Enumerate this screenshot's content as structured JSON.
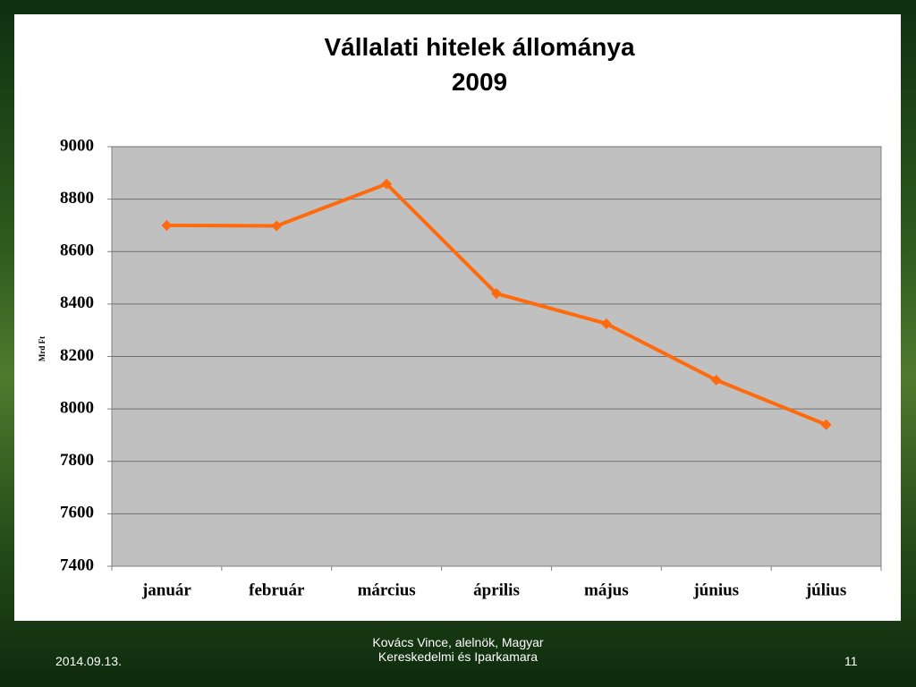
{
  "chart_data": {
    "type": "line",
    "title": "Vállalati hitelek állománya",
    "subtitle": "2009",
    "y_label": "Mrd Ft",
    "categories": [
      "január",
      "február",
      "március",
      "április",
      "május",
      "június",
      "július"
    ],
    "values": [
      8700,
      8698,
      8858,
      8440,
      8325,
      8110,
      7940
    ],
    "color": "#ff6a0d",
    "ylim": [
      7400,
      9000
    ],
    "yticks": [
      7400,
      7600,
      7800,
      8000,
      8200,
      8400,
      8600,
      8800,
      9000
    ],
    "grid": true
  },
  "footer": {
    "date": "2014.09.13.",
    "author": "Kovács Vince, alelnök, Magyar Kereskedelmi és Iparkamara",
    "page": "11"
  }
}
